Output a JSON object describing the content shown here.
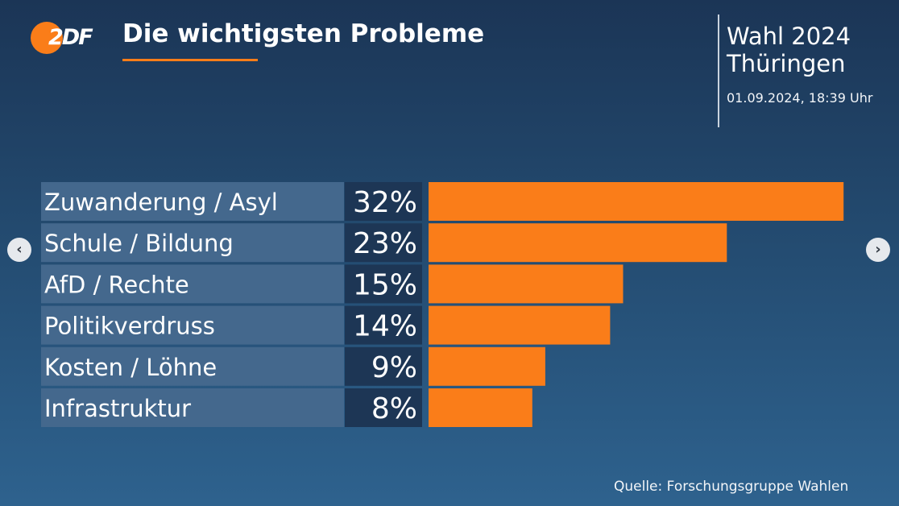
{
  "logo": {
    "text": "2DF"
  },
  "header": {
    "title": "Die wichtigsten Probleme"
  },
  "election": {
    "line1": "Wahl 2024",
    "line2": "Thüringen",
    "date": "01.09.2024, 18:39 Uhr"
  },
  "nav": {
    "prev": "‹",
    "next": "›"
  },
  "colors": {
    "bar": "#fa7d19",
    "label_bg": "#44688d",
    "value_bg": "#1d3655",
    "accent": "#fa7d19"
  },
  "chart_data": {
    "type": "bar",
    "orientation": "horizontal",
    "title": "Die wichtigsten Probleme",
    "categories": [
      "Zuwanderung / Asyl",
      "Schule / Bildung",
      "AfD / Rechte",
      "Politikverdruss",
      "Kosten / Löhne",
      "Infrastruktur"
    ],
    "values": [
      32,
      23,
      15,
      14,
      9,
      8
    ],
    "value_labels": [
      "32%",
      "23%",
      "15%",
      "14%",
      "9%",
      "8%"
    ],
    "unit": "%"
  },
  "source": "Quelle: Forschungsgruppe Wahlen"
}
